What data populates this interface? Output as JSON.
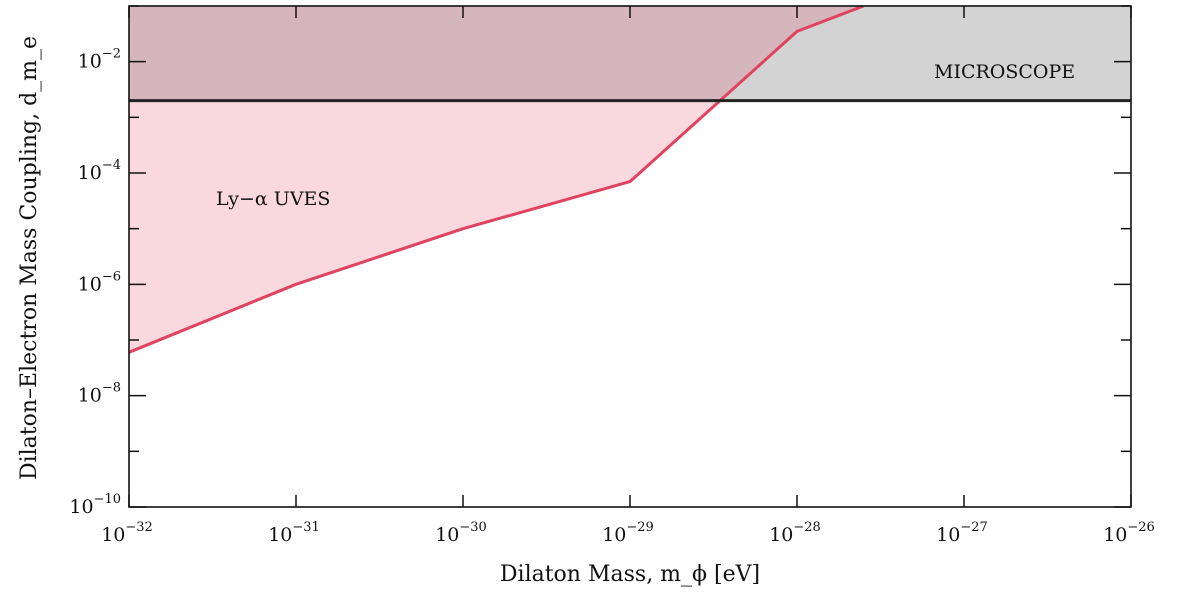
{
  "chart_data": {
    "type": "area",
    "xlabel": "Dilaton Mass, m_ϕ [eV]",
    "ylabel": "Dilaton–Electron Mass Coupling, d_m_e",
    "x_scale": "log",
    "y_scale": "log",
    "xlim": [
      1e-32,
      1e-26
    ],
    "ylim": [
      1e-10,
      0.1
    ],
    "x_ticks": [
      {
        "value": 1e-32,
        "base": "10",
        "exp": "−32"
      },
      {
        "value": 1e-31,
        "base": "10",
        "exp": "−31"
      },
      {
        "value": 1e-30,
        "base": "10",
        "exp": "−30"
      },
      {
        "value": 1e-29,
        "base": "10",
        "exp": "−29"
      },
      {
        "value": 1e-28,
        "base": "10",
        "exp": "−28"
      },
      {
        "value": 1e-27,
        "base": "10",
        "exp": "−27"
      },
      {
        "value": 1e-26,
        "base": "10",
        "exp": "−26"
      }
    ],
    "y_ticks": [
      {
        "value": 1e-10,
        "base": "10",
        "exp": "−10"
      },
      {
        "value": 1e-08,
        "base": "10",
        "exp": "−8"
      },
      {
        "value": 1e-06,
        "base": "10",
        "exp": "−6"
      },
      {
        "value": 0.0001,
        "base": "10",
        "exp": "−4"
      },
      {
        "value": 0.01,
        "base": "10",
        "exp": "−2"
      }
    ],
    "y_minor_ticks": [
      1e-09,
      1e-07,
      1e-05,
      0.001,
      0.1
    ],
    "grid": false,
    "series": [
      {
        "name": "Ly−α  UVES",
        "line_color": "#e0435f",
        "fill_color": "#f9d8de",
        "x": [
          1e-32,
          1e-31,
          1e-30,
          1e-29,
          1e-28,
          2.5e-28
        ],
        "y": [
          6e-08,
          1e-06,
          1e-05,
          7e-05,
          0.035,
          0.1
        ]
      },
      {
        "name": "MICROSCOPE",
        "line_color": "#222222",
        "fill_color": "#d3d3d3",
        "x": [
          1e-32,
          1e-26
        ],
        "y": [
          0.002,
          0.002
        ]
      }
    ],
    "overlap_color": "#d4b6bc"
  }
}
